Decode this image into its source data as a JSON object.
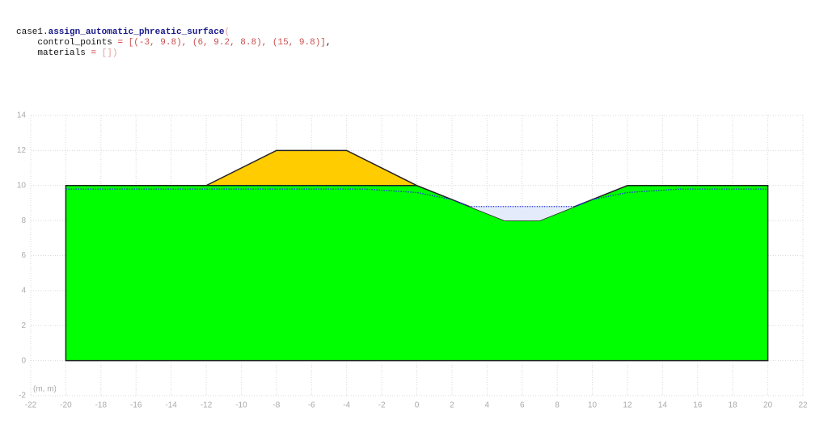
{
  "code": {
    "lines": [
      [
        "case1.",
        "assign_automatic_phreatic_surface",
        "("
      ],
      [
        "control_points",
        "=",
        "[(-3, 9.8), (6, 9.2, 8.8), (15, 9.8)]",
        ","
      ],
      [
        "materials",
        "=",
        "[])"
      ]
    ]
  },
  "chart_data": {
    "type": "polygon",
    "xlim": [
      -22,
      22
    ],
    "ylim": [
      -2,
      14
    ],
    "xticks": [
      -22,
      -20,
      -18,
      -16,
      -14,
      -12,
      -10,
      -8,
      -6,
      -4,
      -2,
      0,
      2,
      4,
      6,
      8,
      10,
      12,
      14,
      16,
      18,
      20,
      22
    ],
    "yticks": [
      -2,
      0,
      2,
      4,
      6,
      8,
      10,
      12,
      14
    ],
    "grid": true,
    "annotation": "(m, m)",
    "series": [
      {
        "fill": "#00ff00",
        "color": "#222222",
        "x": [
          -20,
          -20,
          -12,
          0,
          5,
          7,
          12,
          20,
          20
        ],
        "y": [
          0,
          10,
          10,
          10,
          8,
          8,
          10,
          10,
          0
        ]
      },
      {
        "fill": "#ffcc00",
        "color": "#222222",
        "x": [
          -12,
          -8,
          -4,
          0
        ],
        "y": [
          10,
          12,
          12,
          10
        ]
      },
      {
        "fill": "#e4ecfb",
        "x": [
          3,
          5,
          7,
          9
        ],
        "y": [
          8.8,
          8,
          8,
          8.8
        ]
      },
      {
        "color": "#2233dd",
        "dash": "dotted",
        "x": [
          -20,
          -3,
          0,
          2,
          3,
          9,
          10,
          12,
          15,
          20
        ],
        "y": [
          9.8,
          9.8,
          9.6,
          9.2,
          8.8,
          8.8,
          9.2,
          9.6,
          9.8,
          9.8
        ]
      }
    ]
  }
}
